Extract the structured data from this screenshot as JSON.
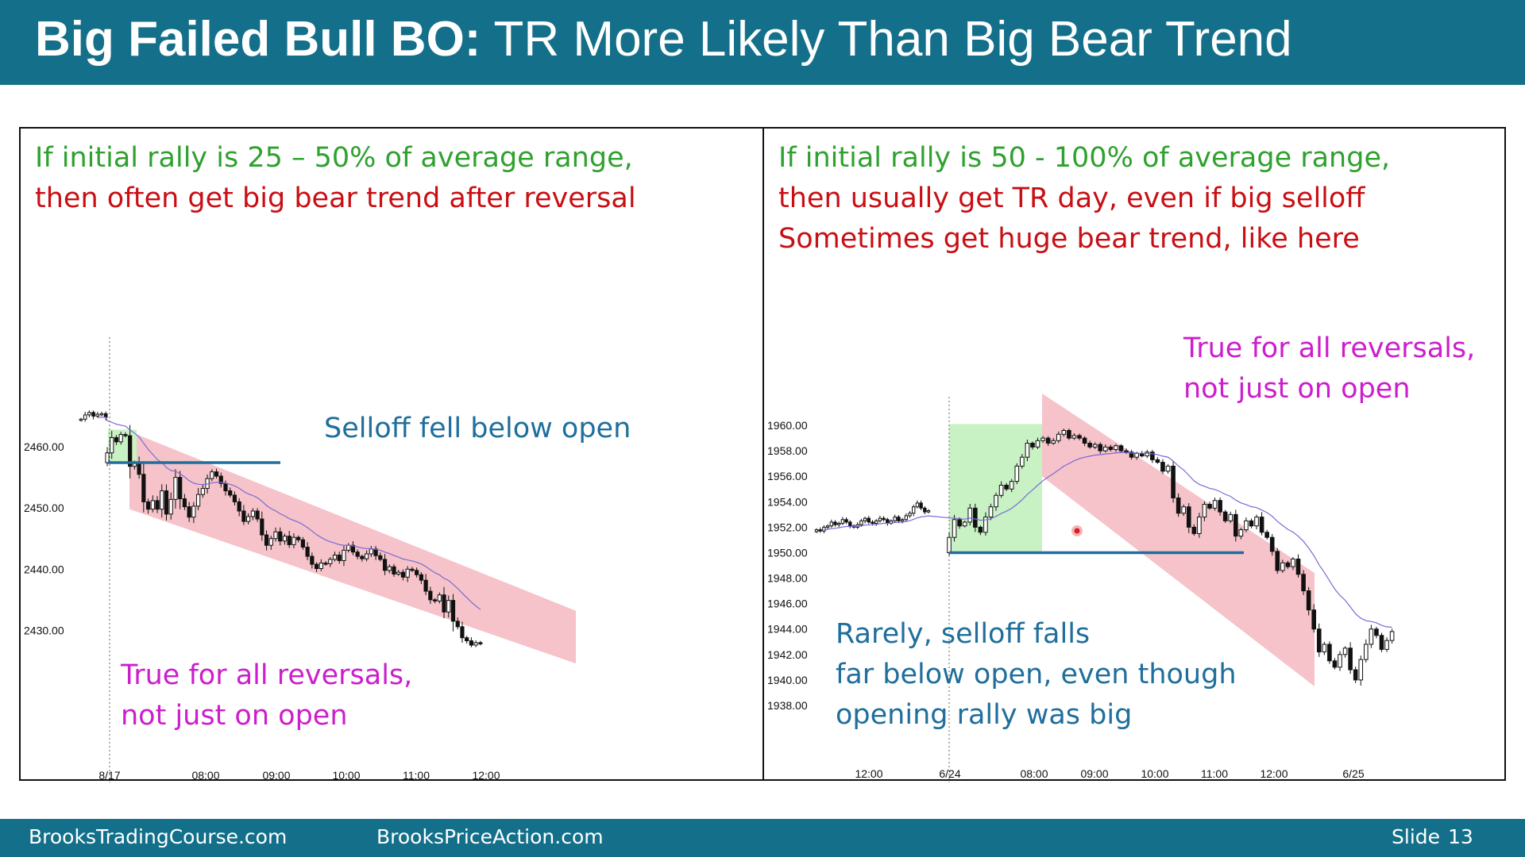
{
  "slide": {
    "title_bold": "Big Failed Bull BO:",
    "title_rest": " TR More Likely Than Big Bear Trend",
    "footer_left_1": "BrooksTradingCourse.com",
    "footer_left_2": "BrooksPriceAction.com",
    "slide_label": "Slide",
    "slide_number": "13"
  },
  "left_panel": {
    "note_line1": "If initial rally is 25 – 50% of average range,",
    "note_line2": "then often get big bear trend after reversal",
    "callout_selloff": "Selloff fell below open",
    "callout_reversals_1": "True for all reversals,",
    "callout_reversals_2": "not just on open"
  },
  "right_panel": {
    "note_line1": "If initial rally is 50 - 100% of average range,",
    "note_line2": "then usually get TR day, even if big selloff",
    "note_line3": "Sometimes get huge bear trend, like here",
    "callout_reversals_1": "True for all reversals,",
    "callout_reversals_2": "not just on open",
    "callout_rarely_1": "Rarely, selloff falls",
    "callout_rarely_2": "far below open, even though",
    "callout_rarely_3": "opening rally was big"
  },
  "colors": {
    "header_bg": "#14708a",
    "note_green": "#2ea12e",
    "note_red": "#c80f14",
    "note_magenta": "#cc1ecc",
    "note_blue": "#1f6e9c",
    "channel_fill": "#f3b9c0",
    "rally_fill": "#c8f2c4",
    "ema_line": "#7a6ad6",
    "open_line": "#1f6e9c"
  },
  "chart_data": [
    {
      "type": "candlestick",
      "x_start_label": "8/17",
      "x_ticks": [
        "8/17",
        "08:00",
        "09:00",
        "10:00",
        "11:00",
        "12:00"
      ],
      "y_ticks": [
        2430,
        2440,
        2450,
        2460
      ],
      "y_tick_labels": [
        "2430.00",
        "2440.00",
        "2450.00",
        "2460.00"
      ],
      "ylim": [
        2425,
        2467
      ],
      "open_price": 2457.4,
      "prior_close": [
        2464.5,
        2465.2,
        2465.6,
        2465.0,
        2465.3,
        2465.4,
        2464.8
      ],
      "closes": [
        2459.0,
        2461.5,
        2460.8,
        2462.0,
        2461.8,
        2456.8,
        2457.4,
        2455.5,
        2451.0,
        2449.8,
        2451.2,
        2449.8,
        2452.8,
        2449.0,
        2451.4,
        2455.0,
        2451.5,
        2450.2,
        2448.5,
        2450.3,
        2452.2,
        2453.2,
        2454.8,
        2455.9,
        2455.2,
        2454.0,
        2452.8,
        2452.1,
        2451.0,
        2449.5,
        2447.8,
        2448.6,
        2449.5,
        2448.2,
        2445.6,
        2443.9,
        2445.0,
        2446.1,
        2444.6,
        2445.4,
        2444.0,
        2445.2,
        2444.8,
        2443.6,
        2442.1,
        2440.8,
        2440.1,
        2441.0,
        2440.9,
        2441.6,
        2442.3,
        2441.4,
        2443.1,
        2443.9,
        2442.8,
        2442.1,
        2441.7,
        2442.5,
        2443.3,
        2442.2,
        2441.6,
        2439.8,
        2440.4,
        2439.2,
        2439.5,
        2438.7,
        2440.0,
        2439.8,
        2439.1,
        2438.2,
        2436.4,
        2435.0,
        2434.8,
        2435.8,
        2433.0,
        2434.9,
        2431.5,
        2430.6,
        2428.8,
        2428.3,
        2427.6,
        2428.0,
        2427.9
      ],
      "channel_top": [
        2462.5,
        2433.2
      ],
      "channel_bottom": [
        2449.8,
        2424.6
      ]
    },
    {
      "type": "candlestick",
      "x_ticks": [
        "12:00",
        "6/24",
        "08:00",
        "09:00",
        "10:00",
        "11:00",
        "12:00",
        "6/25"
      ],
      "y_ticks": [
        1938,
        1940,
        1942,
        1944,
        1946,
        1948,
        1950,
        1952,
        1954,
        1956,
        1958,
        1960
      ],
      "y_tick_labels": [
        "1938.00",
        "1940.00",
        "1942.00",
        "1944.00",
        "1946.00",
        "1948.00",
        "1950.00",
        "1952.00",
        "1954.00",
        "1956.00",
        "1958.00",
        "1960.00"
      ],
      "ylim": [
        1937,
        1961.5
      ],
      "open_price": 1950.0,
      "prior_close": [
        1951.8,
        1951.7,
        1952.0,
        1952.1,
        1952.4,
        1952.2,
        1952.3,
        1952.6,
        1952.4,
        1952.1,
        1952.0,
        1952.2,
        1952.5,
        1952.7,
        1952.4,
        1952.3,
        1952.5,
        1952.7,
        1952.6,
        1952.3,
        1952.5,
        1952.8,
        1952.5,
        1952.6,
        1952.9,
        1953.1,
        1953.6,
        1953.9,
        1953.5,
        1953.2,
        1953.3
      ],
      "closes": [
        1951.2,
        1952.6,
        1952.1,
        1952.4,
        1953.5,
        1952.0,
        1951.6,
        1952.8,
        1953.6,
        1954.5,
        1955.3,
        1955.0,
        1955.6,
        1956.8,
        1957.5,
        1958.6,
        1958.3,
        1958.8,
        1959.0,
        1958.6,
        1958.8,
        1959.3,
        1959.6,
        1959.0,
        1959.2,
        1959.0,
        1958.6,
        1958.3,
        1958.5,
        1958.0,
        1958.3,
        1958.1,
        1958.4,
        1958.0,
        1957.9,
        1957.5,
        1957.8,
        1957.6,
        1957.9,
        1957.3,
        1957.1,
        1956.4,
        1956.8,
        1954.3,
        1953.1,
        1953.6,
        1952.0,
        1951.5,
        1952.8,
        1953.8,
        1953.5,
        1954.1,
        1953.2,
        1952.5,
        1953.0,
        1951.3,
        1951.8,
        1952.5,
        1952.1,
        1952.8,
        1951.6,
        1951.2,
        1950.1,
        1948.6,
        1949.2,
        1948.9,
        1949.5,
        1948.3,
        1947.0,
        1945.5,
        1944.0,
        1942.2,
        1942.8,
        1941.5,
        1941.0,
        1942.0,
        1942.5,
        1940.8,
        1940.0,
        1941.6,
        1942.8,
        1944.0,
        1943.5,
        1942.4,
        1943.1,
        1943.8
      ],
      "channel_top": [
        1962.5,
        1948.4
      ],
      "channel_bottom": [
        1956.0,
        1939.5
      ]
    }
  ]
}
